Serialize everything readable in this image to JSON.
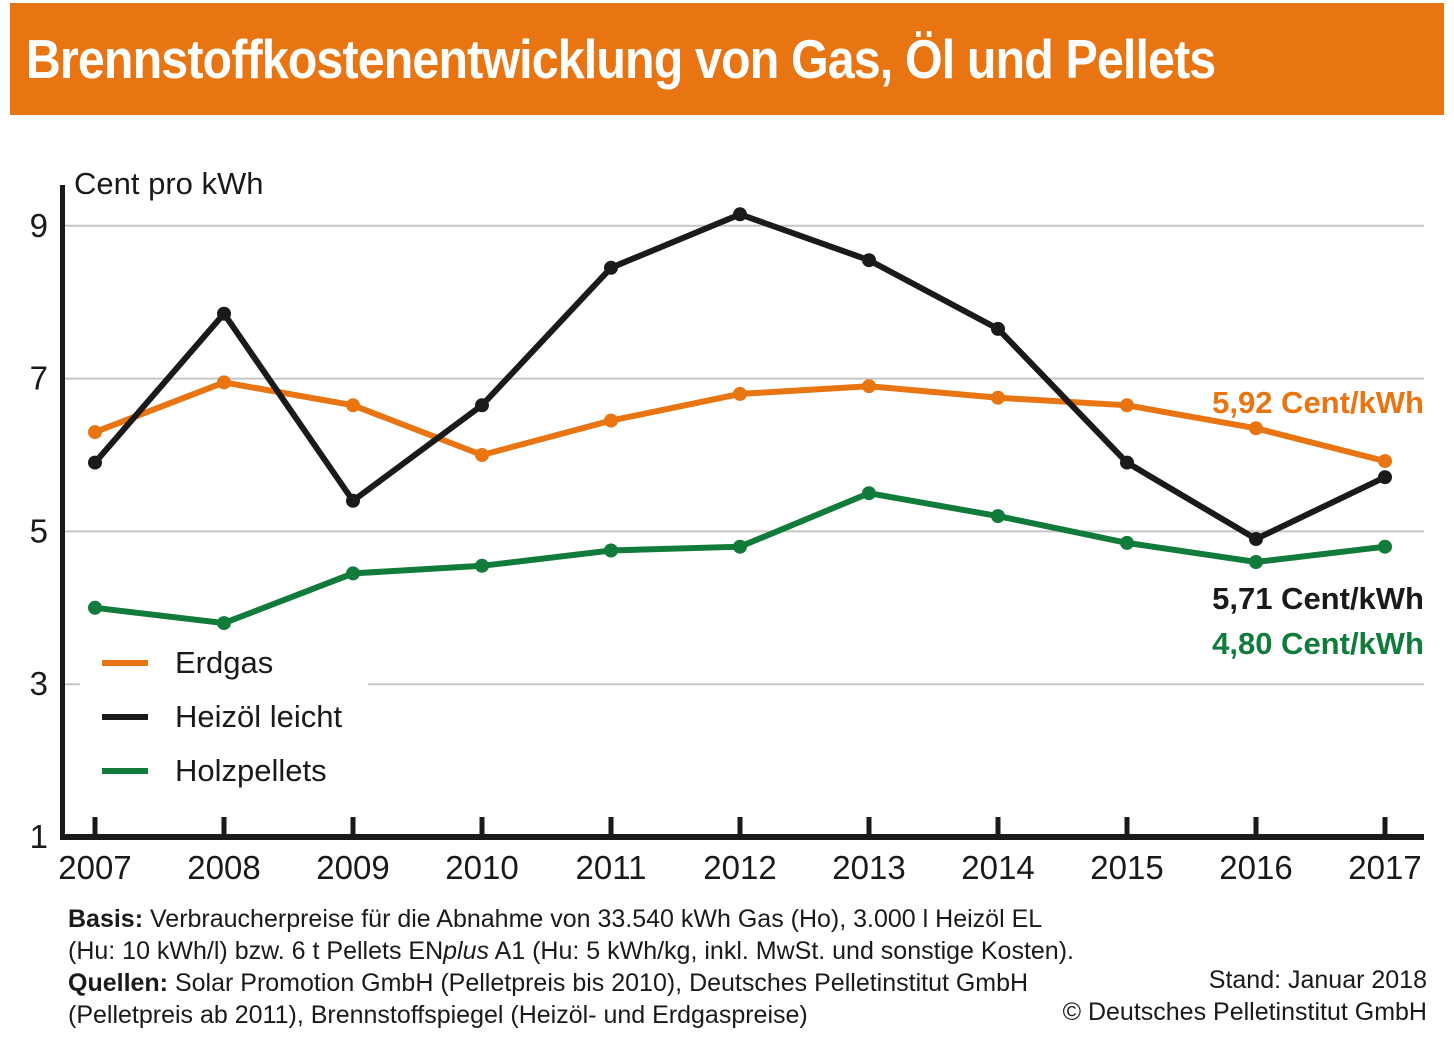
{
  "header": {
    "title": "Brennstoffkostenentwicklung von Gas, Öl und Pellets",
    "bg_color": "#e87511",
    "text_color": "#ffffff"
  },
  "chart_data": {
    "type": "line",
    "title": "Brennstoffkostenentwicklung von Gas, Öl und Pellets",
    "ylabel": "Cent pro kWh",
    "x": [
      2007,
      2008,
      2009,
      2010,
      2011,
      2012,
      2013,
      2014,
      2015,
      2016,
      2017
    ],
    "yticks": [
      1,
      3,
      5,
      7,
      9
    ],
    "ylim": [
      1,
      9.7
    ],
    "grid": "horizontal",
    "grid_color": "#c6c6c6",
    "axis_color": "#1a1a1a",
    "legend_position": "inside-lower-left",
    "series": [
      {
        "name": "Erdgas",
        "color": "#e87511",
        "values": [
          6.3,
          6.95,
          6.65,
          6.0,
          6.45,
          6.8,
          6.9,
          6.75,
          6.65,
          6.35,
          5.92
        ],
        "end_label": "5,92 Cent/kWh"
      },
      {
        "name": "Heizöl leicht",
        "color": "#1a1a1a",
        "values": [
          5.9,
          7.85,
          5.4,
          6.65,
          8.45,
          9.15,
          8.55,
          7.65,
          5.9,
          4.9,
          5.71
        ],
        "end_label": "5,71 Cent/kWh"
      },
      {
        "name": "Holzpellets",
        "color": "#107b3b",
        "values": [
          4.0,
          3.8,
          4.45,
          4.55,
          4.75,
          4.8,
          5.5,
          5.2,
          4.85,
          4.6,
          4.8
        ],
        "end_label": "4,80 Cent/kWh"
      }
    ]
  },
  "footer": {
    "basis_label": "Basis:",
    "basis_line1": "Verbraucherpreise für die Abnahme von 33.540 kWh Gas (Ho), 3.000 l Heizöl EL",
    "basis_line2_pre": "(Hu: 10 kWh/l) bzw. 6 t Pellets EN",
    "basis_line2_italic": "plus",
    "basis_line2_post": " A1 (Hu: 5 kWh/kg, inkl. MwSt. und sonstige Kosten).",
    "quellen_label": "Quellen:",
    "quellen_line1": "Solar Promotion GmbH (Pelletpreis bis 2010), Deutsches Pelletinstitut GmbH",
    "quellen_line2": "(Pelletpreis ab 2011), Brennstoffspiegel (Heizöl- und Erdgaspreise)",
    "stand": "Stand: Januar 2018",
    "copyright": "© Deutsches Pelletinstitut GmbH"
  }
}
